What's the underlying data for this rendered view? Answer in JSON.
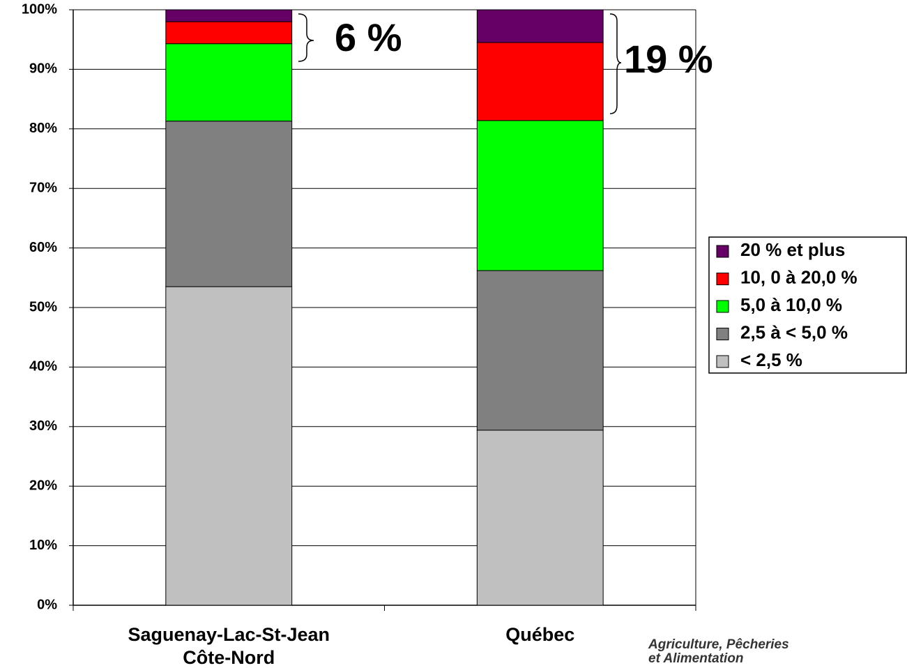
{
  "chart_data": {
    "type": "stacked-bar",
    "categories": [
      [
        "Saguenay-Lac-St-Jean",
        "Côte-Nord"
      ],
      [
        "Québec"
      ]
    ],
    "series": [
      {
        "name": "< 2,5 %",
        "color": "#c0c0c0",
        "values": [
          53.5,
          29.4
        ]
      },
      {
        "name": "2,5 à < 5,0 %",
        "color": "#808080",
        "values": [
          27.8,
          26.8
        ]
      },
      {
        "name": "5,0 à 10,0 %",
        "color": "#00ff00",
        "values": [
          13.0,
          25.2
        ]
      },
      {
        "name": "10, 0 à 20,0 %",
        "color": "#ff0000",
        "values": [
          3.7,
          13.1
        ]
      },
      {
        "name": "20 % et plus",
        "color": "#660066",
        "values": [
          2.0,
          5.5
        ]
      }
    ],
    "ylim": [
      0,
      100
    ],
    "yticks": [
      {
        "value": 0,
        "label": "0%"
      },
      {
        "value": 10,
        "label": "10%"
      },
      {
        "value": 20,
        "label": "20%"
      },
      {
        "value": 30,
        "label": "30%"
      },
      {
        "value": 40,
        "label": "40%"
      },
      {
        "value": 50,
        "label": "50%"
      },
      {
        "value": 60,
        "label": "60%"
      },
      {
        "value": 70,
        "label": "70%"
      },
      {
        "value": 80,
        "label": "80%"
      },
      {
        "value": 90,
        "label": "90%"
      },
      {
        "value": 100,
        "label": "100%"
      }
    ],
    "grid": true,
    "legend": "right",
    "annotations": [
      "6 %",
      "19 %"
    ],
    "footer": [
      "Agriculture, Pêcheries",
      "et Alimentation"
    ]
  }
}
